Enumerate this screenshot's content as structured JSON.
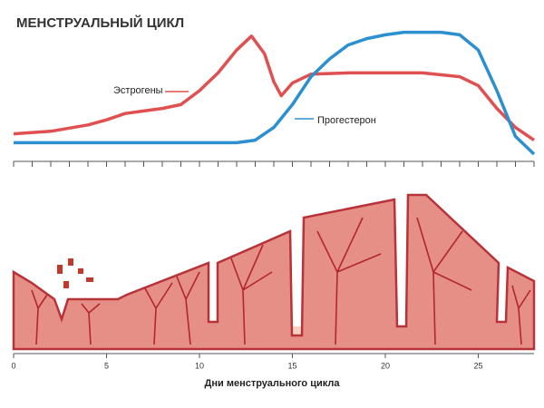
{
  "chart_data": {
    "type": "line",
    "title": "МЕНСТРУАЛЬНЫЙ ЦИКЛ",
    "x_label": "Дни менструального цикла",
    "xlim": [
      0,
      28
    ],
    "ylim": [
      0,
      100
    ],
    "xticks": [
      0,
      5,
      10,
      15,
      20,
      25
    ],
    "series": [
      {
        "name": "Эстрогены",
        "color": "#e05050",
        "x": [
          0,
          2,
          4,
          5,
          6,
          7,
          8,
          9,
          10,
          11,
          12,
          12.8,
          13.5,
          14,
          14.4,
          15,
          16,
          18,
          20,
          22,
          24,
          25,
          26,
          27,
          28
        ],
        "values": [
          16,
          18,
          23,
          27,
          32,
          34,
          36,
          39,
          50,
          64,
          82,
          93,
          79,
          57,
          46,
          56,
          63,
          64,
          64,
          64,
          61,
          54,
          36,
          21,
          11
        ]
      },
      {
        "name": "Прогестерон",
        "color": "#2b8fd0",
        "x": [
          0,
          4,
          8,
          12,
          13,
          14,
          15,
          16,
          17,
          18,
          19,
          20,
          21,
          22,
          23,
          24,
          25,
          26,
          27,
          28
        ],
        "values": [
          9,
          9,
          9,
          9,
          11,
          21,
          39,
          61,
          75,
          86,
          91,
          94,
          96,
          96,
          96,
          94,
          82,
          50,
          14,
          0
        ]
      }
    ]
  }
}
